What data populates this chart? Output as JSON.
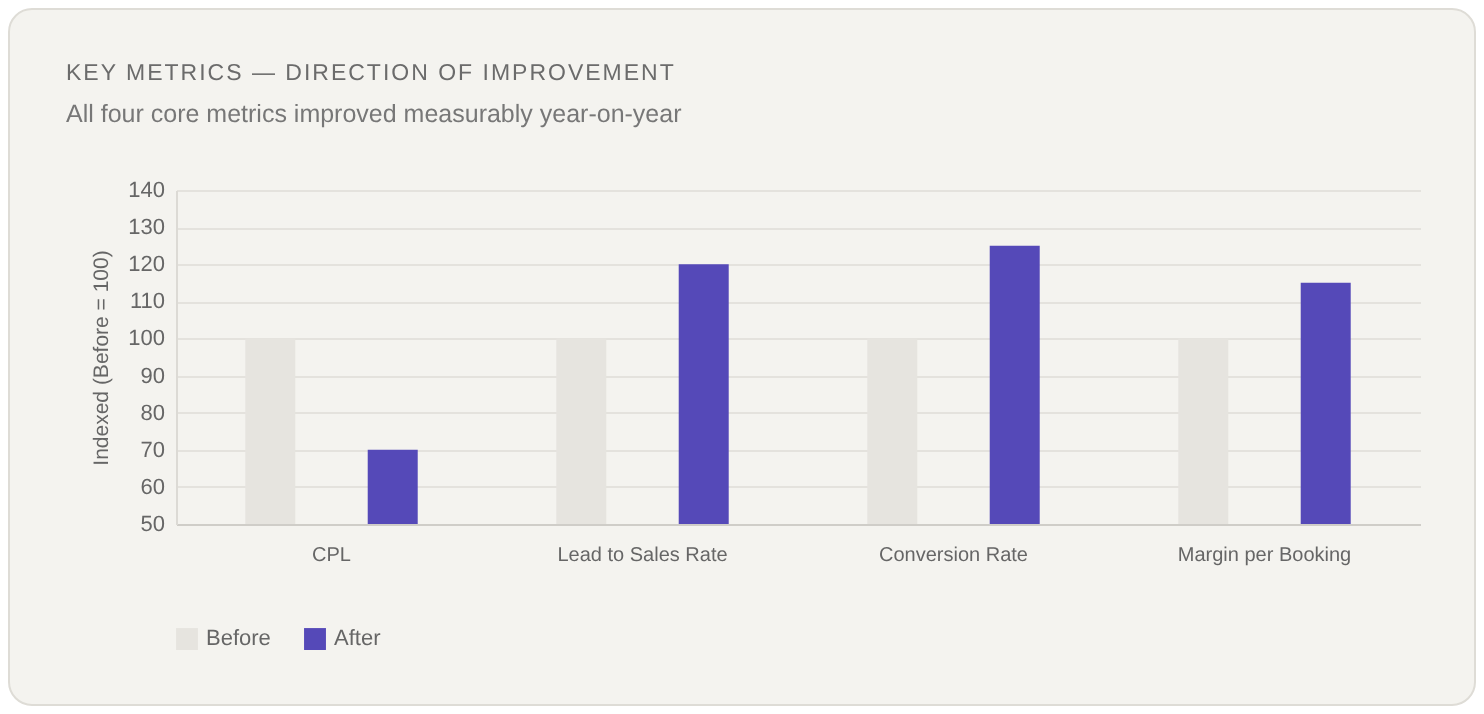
{
  "chart_data": {
    "type": "bar",
    "title": "KEY METRICS — DIRECTION OF IMPROVEMENT",
    "subtitle": "All four core metrics improved measurably year-on-year",
    "ylabel": "Indexed (Before = 100)",
    "categories": [
      "CPL",
      "Lead to Sales Rate",
      "Conversion Rate",
      "Margin per Booking"
    ],
    "series": [
      {
        "name": "Before",
        "color": "#e6e4df",
        "values": [
          100,
          100,
          100,
          100
        ]
      },
      {
        "name": "After",
        "color": "#5549b8",
        "values": [
          70,
          120,
          125,
          115
        ]
      }
    ],
    "ylim": [
      50,
      140
    ],
    "yticks": [
      50,
      60,
      70,
      80,
      90,
      100,
      110,
      120,
      130,
      140
    ],
    "grid": "y",
    "legend": "bottom"
  }
}
